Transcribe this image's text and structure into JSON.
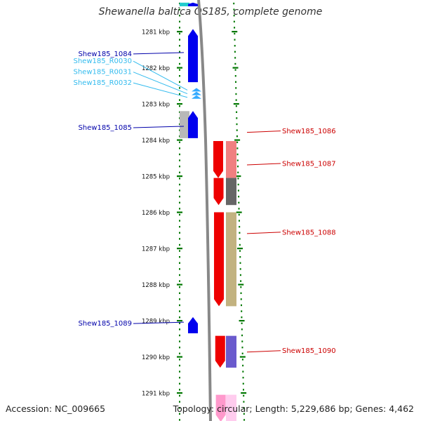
{
  "title": "Shewanella baltica OS185, complete genome",
  "footer": {
    "accession": "Accession: NC_009665",
    "summary": "Topology: circular; Length: 5,229,686 bp; Genes: 4,462"
  },
  "ruler": {
    "ticks": [
      {
        "kbp": 1281,
        "label": "1281 kbp"
      },
      {
        "kbp": 1282,
        "label": "1282 kbp"
      },
      {
        "kbp": 1283,
        "label": "1283 kbp"
      },
      {
        "kbp": 1284,
        "label": "1284 kbp"
      },
      {
        "kbp": 1285,
        "label": "1285 kbp"
      },
      {
        "kbp": 1286,
        "label": "1286 kbp"
      },
      {
        "kbp": 1287,
        "label": "1287 kbp"
      },
      {
        "kbp": 1288,
        "label": "1288 kbp"
      },
      {
        "kbp": 1289,
        "label": "1289 kbp"
      },
      {
        "kbp": 1290,
        "label": "1290 kbp"
      },
      {
        "kbp": 1291,
        "label": "1291 kbp"
      }
    ]
  },
  "features": [
    {
      "id": "top-partial-reverse",
      "strand": "reverse",
      "type": "CDS",
      "start_kbp": 1280.2,
      "end_kbp": 1280.3,
      "color": "#0000ee"
    },
    {
      "id": "Shew185_1084",
      "label": "Shew185_1084",
      "strand": "reverse",
      "type": "CDS",
      "start_kbp": 1280.93,
      "end_kbp": 1282.4,
      "color": "#0000ee",
      "label_color": "#0000aa"
    },
    {
      "id": "Shew185_R0030",
      "label": "Shew185_R0030",
      "strand": "reverse",
      "type": "tRNA",
      "start_kbp": 1282.58,
      "end_kbp": 1282.66,
      "color": "#33aaff",
      "label_color": "#33bbee"
    },
    {
      "id": "Shew185_R0031",
      "label": "Shew185_R0031",
      "strand": "reverse",
      "type": "tRNA",
      "start_kbp": 1282.68,
      "end_kbp": 1282.76,
      "color": "#33aaff",
      "label_color": "#33bbee"
    },
    {
      "id": "Shew185_R0032",
      "label": "Shew185_R0032",
      "strand": "reverse",
      "type": "tRNA",
      "start_kbp": 1282.78,
      "end_kbp": 1282.86,
      "color": "#33aaff",
      "label_color": "#33bbee"
    },
    {
      "id": "Shew185_1085",
      "label": "Shew185_1085",
      "strand": "reverse",
      "type": "CDS",
      "start_kbp": 1283.2,
      "end_kbp": 1283.95,
      "color": "#0000ee",
      "label_color": "#0000aa"
    },
    {
      "id": "Shew185_1086",
      "label": "Shew185_1086",
      "strand": "forward",
      "type": "CDS",
      "start_kbp": 1284.03,
      "end_kbp": 1285.05,
      "color": "#ee0000",
      "label_color": "#cc0000"
    },
    {
      "id": "Shew185_1087",
      "label": "Shew185_1087",
      "strand": "forward",
      "type": "CDS",
      "start_kbp": 1285.05,
      "end_kbp": 1285.8,
      "color": "#ee0000",
      "label_color": "#cc0000"
    },
    {
      "id": "Shew185_1088",
      "label": "Shew185_1088",
      "strand": "forward",
      "type": "CDS",
      "start_kbp": 1286.0,
      "end_kbp": 1288.6,
      "color": "#ee0000",
      "label_color": "#cc0000"
    },
    {
      "id": "Shew185_1089",
      "label": "Shew185_1089",
      "strand": "reverse",
      "type": "CDS",
      "start_kbp": 1288.9,
      "end_kbp": 1289.35,
      "color": "#0000ee",
      "label_color": "#0000aa"
    },
    {
      "id": "Shew185_1090",
      "label": "Shew185_1090",
      "strand": "forward",
      "type": "CDS",
      "start_kbp": 1289.42,
      "end_kbp": 1290.3,
      "color": "#ee0000",
      "label_color": "#cc0000"
    },
    {
      "id": "bottom-partial-forward",
      "strand": "forward",
      "type": "CDS",
      "start_kbp": 1291.05,
      "end_kbp": 1291.8,
      "color": "#ff99cc"
    }
  ],
  "annotation_blocks": [
    {
      "id": "block-top-cyan",
      "side": "left",
      "start_kbp": 1280.2,
      "end_kbp": 1280.3,
      "color": "#22cccc"
    },
    {
      "id": "block-1085",
      "side": "left",
      "start_kbp": 1283.2,
      "end_kbp": 1283.95,
      "color": "#b8b8b8"
    },
    {
      "id": "block-1086",
      "side": "right",
      "start_kbp": 1284.03,
      "end_kbp": 1285.05,
      "color": "#f08080"
    },
    {
      "id": "block-1087",
      "side": "right",
      "start_kbp": 1285.05,
      "end_kbp": 1285.8,
      "color": "#666666"
    },
    {
      "id": "block-1088",
      "side": "right",
      "start_kbp": 1286.0,
      "end_kbp": 1288.6,
      "color": "#c2b280"
    },
    {
      "id": "block-1090",
      "side": "right",
      "start_kbp": 1289.42,
      "end_kbp": 1290.3,
      "color": "#6a5acd"
    },
    {
      "id": "block-bottom-pink",
      "side": "right",
      "start_kbp": 1291.05,
      "end_kbp": 1291.8,
      "color": "#ffccee"
    }
  ],
  "colors": {
    "backbone": "#888888",
    "ruler_dots": "#007700",
    "forward_label": "#cc0000",
    "reverse_label": "#0000aa",
    "trna_label": "#33bbee"
  }
}
